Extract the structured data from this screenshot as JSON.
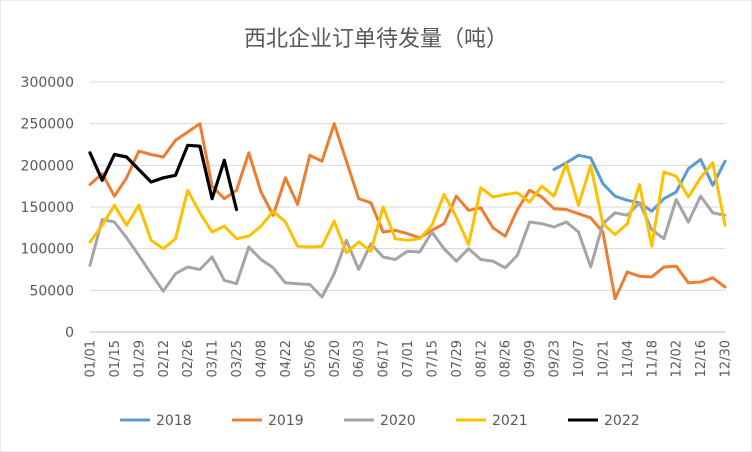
{
  "chart_data": {
    "type": "line",
    "title": "西北企业订单待发量（吨）",
    "xlabel": "",
    "ylabel": "",
    "ylim": [
      0,
      300000
    ],
    "y_ticks": [
      0,
      50000,
      100000,
      150000,
      200000,
      250000,
      300000
    ],
    "y_tick_labels": [
      "0",
      "50000",
      "100000",
      "150000",
      "200000",
      "250000",
      "300000"
    ],
    "x_count": 53,
    "x_tick_labels": [
      "01/01",
      "01/15",
      "01/29",
      "02/12",
      "02/26",
      "03/11",
      "03/25",
      "04/08",
      "04/22",
      "05/06",
      "05/20",
      "06/03",
      "06/17",
      "07/01",
      "07/15",
      "07/29",
      "08/12",
      "08/26",
      "09/09",
      "09/23",
      "10/07",
      "10/21",
      "11/04",
      "11/18",
      "12/02",
      "12/16",
      "12/30"
    ],
    "grid": "horizontal",
    "legend_position": "bottom",
    "series": [
      {
        "name": "2018",
        "color": "#5B9BD5",
        "start_index": 38,
        "values": [
          195000,
          203000,
          212000,
          209000,
          178000,
          163000,
          158000,
          155000,
          145000,
          160000,
          168000,
          196000,
          207000,
          176000,
          205000
        ]
      },
      {
        "name": "2019",
        "color": "#ED7D31",
        "start_index": 0,
        "values": [
          177000,
          190000,
          163000,
          185000,
          217000,
          213000,
          210000,
          230000,
          240000,
          250000,
          175000,
          160000,
          170000,
          215000,
          168000,
          140000,
          185000,
          153000,
          212000,
          205000,
          250000,
          205000,
          160000,
          155000,
          120000,
          122000,
          118000,
          113000,
          122000,
          130000,
          163000,
          146000,
          149000,
          125000,
          115000,
          147000,
          170000,
          162000,
          148000,
          147000,
          142000,
          137000,
          120000,
          40000,
          72000,
          67000,
          66000,
          78000,
          79000,
          59000,
          60000,
          65000,
          54000
        ]
      },
      {
        "name": "2020",
        "color": "#A5A5A5",
        "start_index": 0,
        "values": [
          80000,
          135000,
          132000,
          113000,
          92000,
          70000,
          49000,
          70000,
          78000,
          75000,
          90000,
          62000,
          58000,
          102000,
          87000,
          77000,
          59000,
          58000,
          57000,
          42000,
          70000,
          110000,
          75000,
          106000,
          90000,
          87000,
          97000,
          96000,
          120000,
          100000,
          85000,
          100000,
          87000,
          85000,
          77000,
          92000,
          132000,
          130000,
          126000,
          132000,
          120000,
          78000,
          130000,
          143000,
          140000,
          155000,
          123000,
          112000,
          159000,
          132000,
          163000,
          143000,
          140000
        ]
      },
      {
        "name": "2021",
        "color": "#FFC000",
        "start_index": 0,
        "values": [
          108000,
          128000,
          152000,
          128000,
          152000,
          110000,
          100000,
          112000,
          170000,
          143000,
          120000,
          127000,
          112000,
          115000,
          127000,
          145000,
          132000,
          103000,
          102000,
          103000,
          133000,
          95000,
          108000,
          97000,
          150000,
          112000,
          110000,
          112000,
          128000,
          165000,
          138000,
          105000,
          173000,
          162000,
          165000,
          167000,
          156000,
          175000,
          163000,
          202000,
          152000,
          200000,
          130000,
          117000,
          130000,
          177000,
          103000,
          192000,
          187000,
          162000,
          185000,
          203000,
          128000
        ]
      },
      {
        "name": "2022",
        "color": "#000000",
        "start_index": 0,
        "values": [
          215000,
          182000,
          213000,
          210000,
          195000,
          180000,
          185000,
          188000,
          224000,
          223000,
          160000,
          206000,
          147000
        ]
      }
    ]
  }
}
